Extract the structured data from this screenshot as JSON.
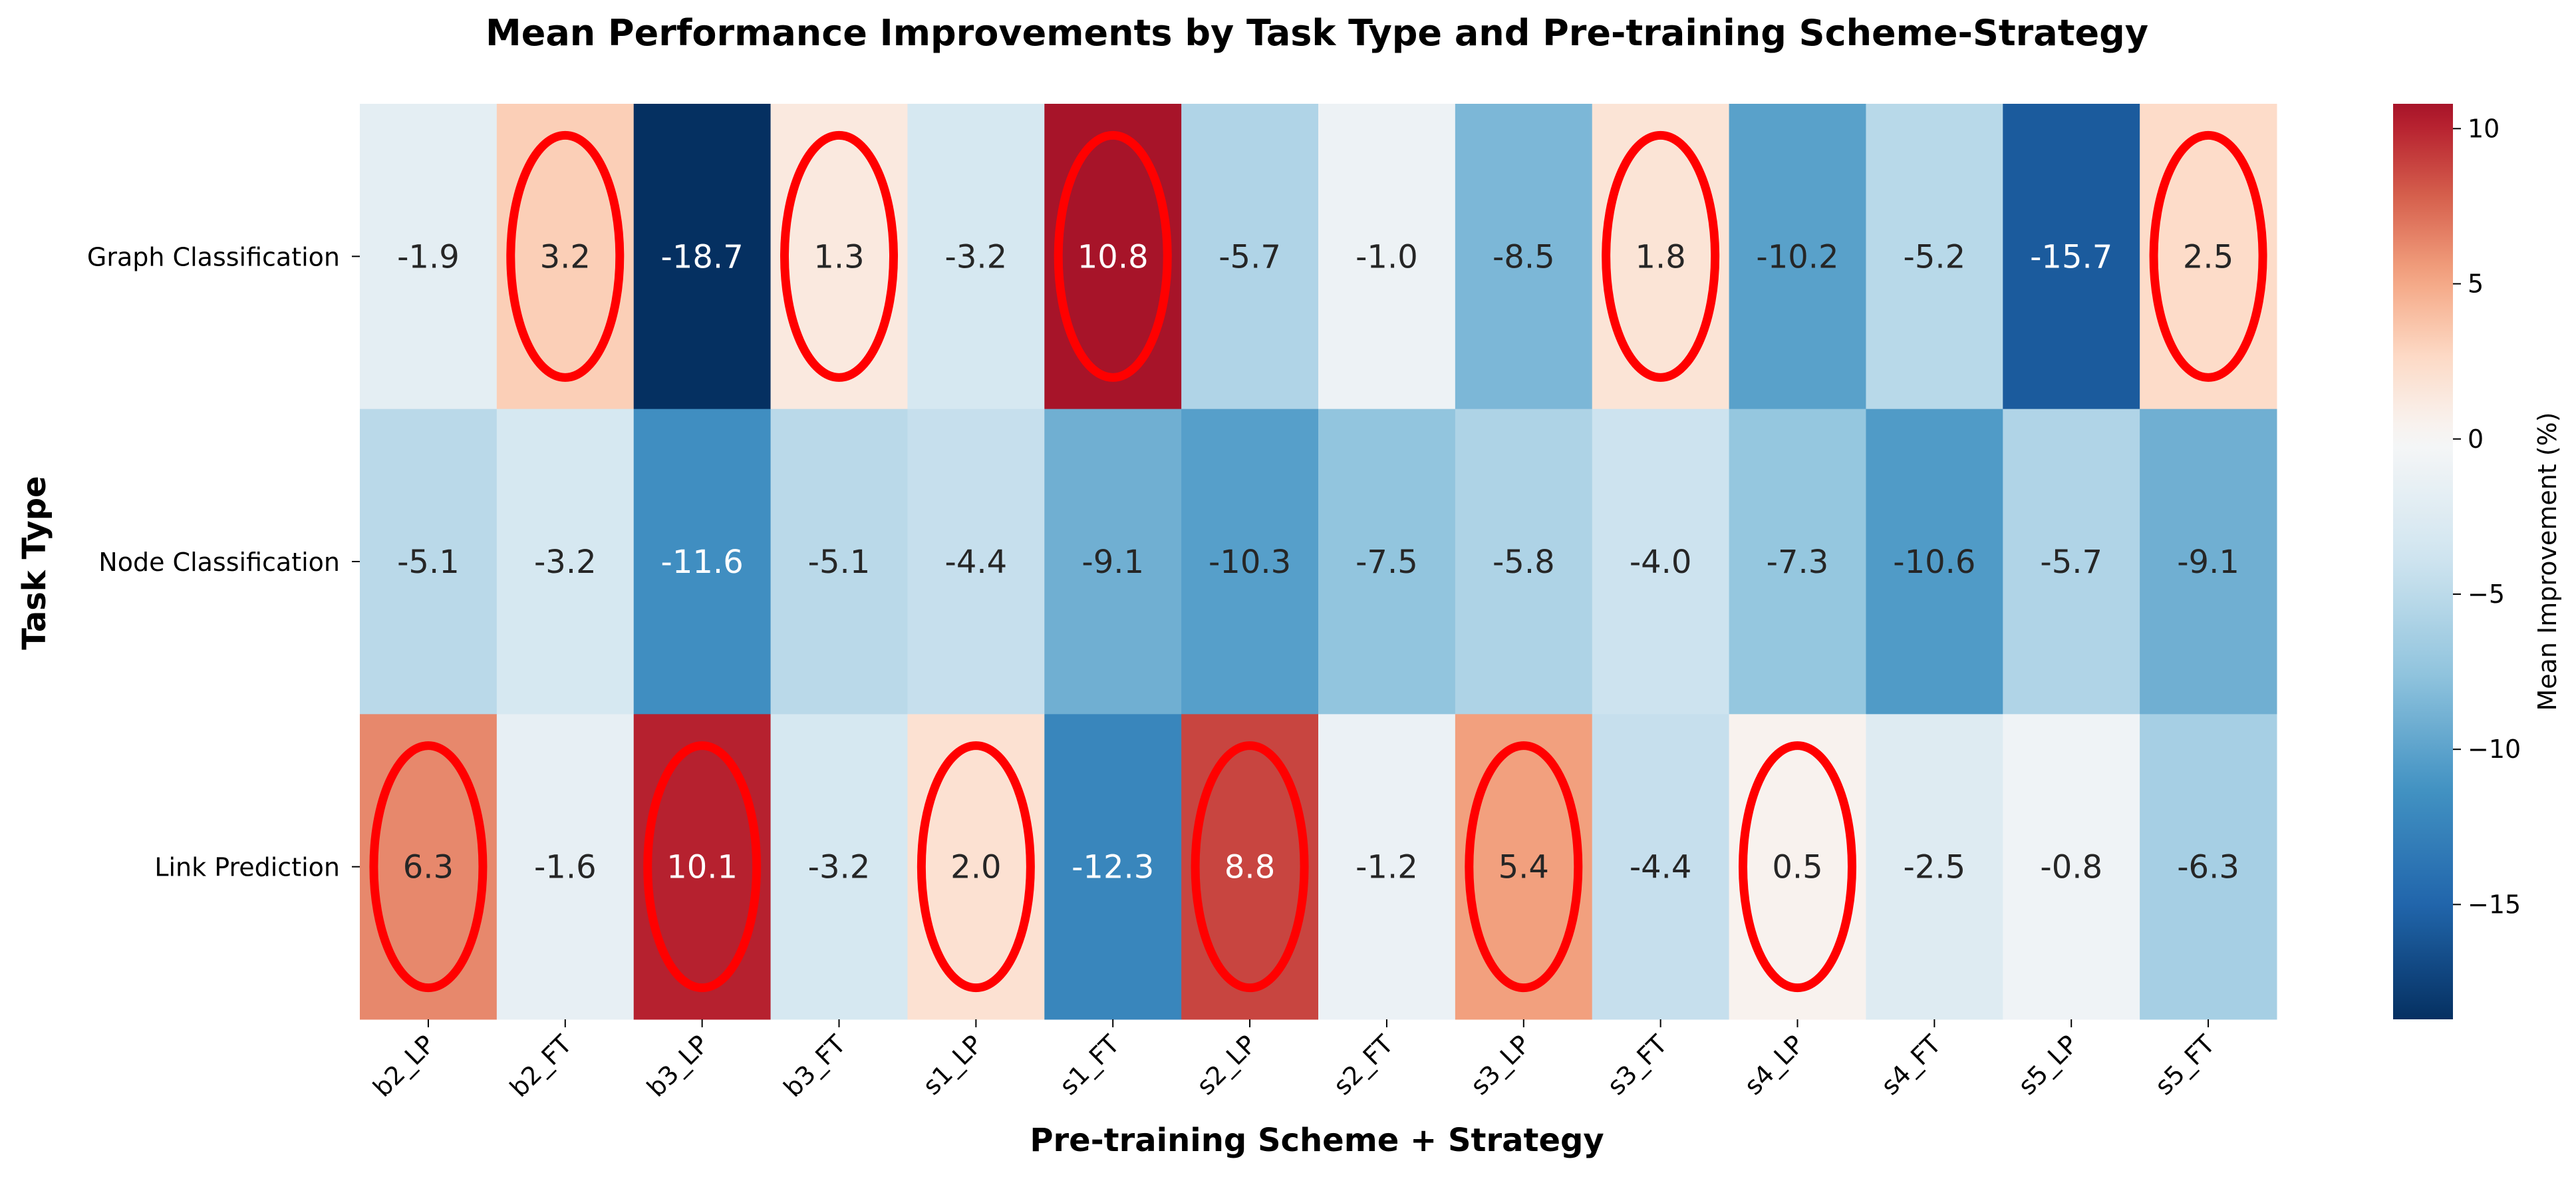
{
  "chart_data": {
    "type": "heatmap",
    "title": "Mean Performance Improvements by Task Type and Pre-training Scheme-Strategy",
    "xlabel": "Pre-training Scheme + Strategy",
    "ylabel": "Task Type",
    "colorbar_label": "Mean Improvement (%)",
    "colorbar_range": [
      -18.7,
      10.8
    ],
    "colorbar_ticks": [
      10,
      5,
      0,
      -5,
      -10,
      -15
    ],
    "colormap": "RdBu_r",
    "columns": [
      "b2_LP",
      "b2_FT",
      "b3_LP",
      "b3_FT",
      "s1_LP",
      "s1_FT",
      "s2_LP",
      "s2_FT",
      "s3_LP",
      "s3_FT",
      "s4_LP",
      "s4_FT",
      "s5_LP",
      "s5_FT"
    ],
    "rows": [
      "Graph Classification",
      "Node Classification",
      "Link Prediction"
    ],
    "values": [
      [
        -1.9,
        3.2,
        -18.7,
        1.3,
        -3.2,
        10.8,
        -5.7,
        -1.0,
        -8.5,
        1.8,
        -10.2,
        -5.2,
        -15.7,
        2.5
      ],
      [
        -5.1,
        -3.2,
        -11.6,
        -5.1,
        -4.4,
        -9.1,
        -10.3,
        -7.5,
        -5.8,
        -4.0,
        -7.3,
        -10.6,
        -5.7,
        -9.1
      ],
      [
        6.3,
        -1.6,
        10.1,
        -3.2,
        2.0,
        -12.3,
        8.8,
        -1.2,
        5.4,
        -4.4,
        0.5,
        -2.5,
        -0.8,
        -6.3
      ]
    ],
    "value_labels": [
      [
        "-1.9",
        "3.2",
        "-18.7",
        "1.3",
        "-3.2",
        "10.8",
        "-5.7",
        "-1.0",
        "-8.5",
        "1.8",
        "-10.2",
        "-5.2",
        "-15.7",
        "2.5"
      ],
      [
        "-5.1",
        "-3.2",
        "-11.6",
        "-5.1",
        "-4.4",
        "-9.1",
        "-10.3",
        "-7.5",
        "-5.8",
        "-4.0",
        "-7.3",
        "-10.6",
        "-5.7",
        "-9.1"
      ],
      [
        "6.3",
        "-1.6",
        "10.1",
        "-3.2",
        "2.0",
        "-12.3",
        "8.8",
        "-1.2",
        "5.4",
        "-4.4",
        "0.5",
        "-2.5",
        "-0.8",
        "-6.3"
      ]
    ],
    "highlight_rule": "positive values circled",
    "highlight_color": "#ff0000"
  }
}
